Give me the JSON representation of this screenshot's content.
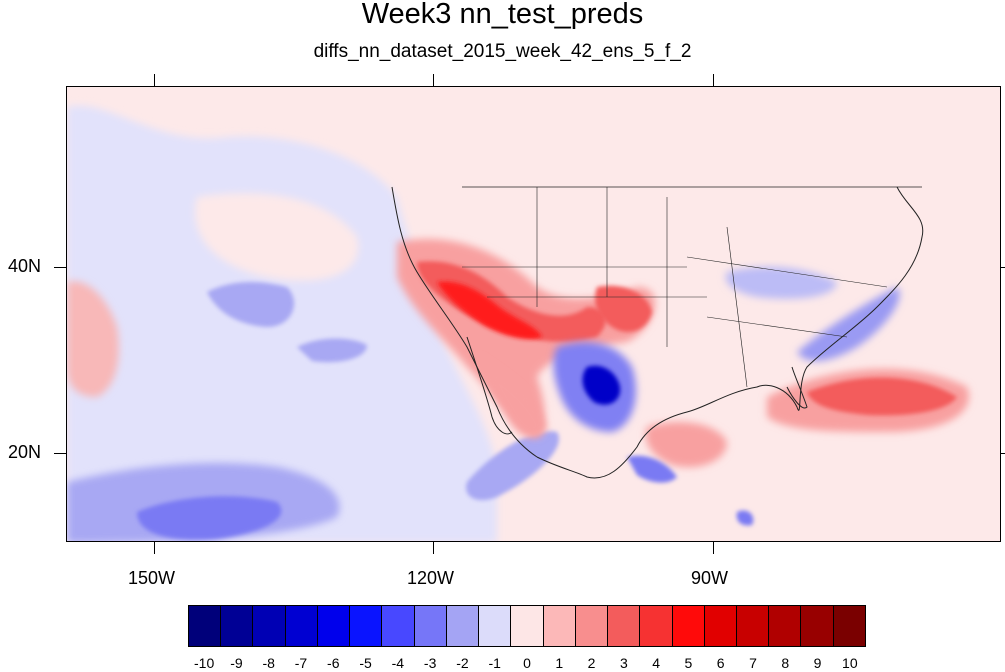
{
  "header": {
    "title": "Week3 nn_test_preds",
    "subtitle": "diffs_nn_dataset_2015_week_42_ens_5_f_2"
  },
  "map": {
    "lat_labels": [
      "40N",
      "20N"
    ],
    "lon_labels": [
      "150W",
      "120W",
      "90W"
    ]
  },
  "colorbar": {
    "labels": [
      "-10",
      "-9",
      "-8",
      "-7",
      "-6",
      "-5",
      "-4",
      "-3",
      "-2",
      "-1",
      "0",
      "1",
      "2",
      "3",
      "4",
      "5",
      "6",
      "7",
      "8",
      "9",
      "10"
    ],
    "colors": [
      "#00007a",
      "#000095",
      "#0000b4",
      "#0000d2",
      "#0000ec",
      "#0a14ff",
      "#4848ff",
      "#7676f8",
      "#a4a4f4",
      "#dcdcfa",
      "#fde6e6",
      "#fcb8b8",
      "#f88e8e",
      "#f35c5c",
      "#f63232",
      "#ff0a0a",
      "#e10000",
      "#c80000",
      "#b00000",
      "#980000",
      "#7a0000"
    ]
  }
}
